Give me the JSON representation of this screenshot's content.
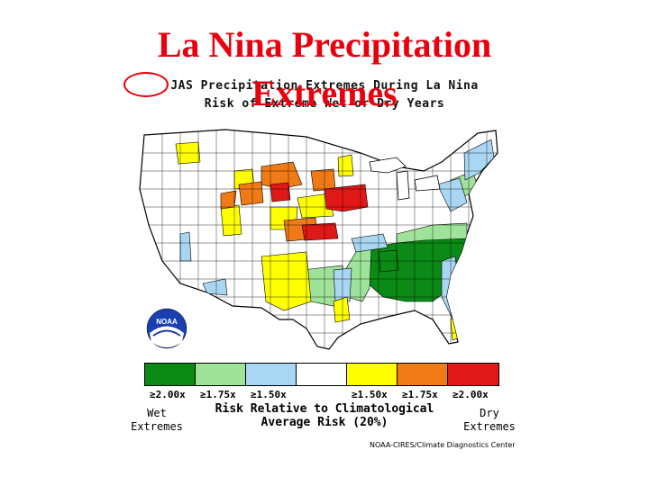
{
  "slide": {
    "title_line1": "La Nina Precipitation",
    "title_line2": "Extremes"
  },
  "figure": {
    "heading_line1": "JAS Precipitation Extremes During La Nina",
    "heading_line2": "Risk of Extreme Wet or Dry Years",
    "season": "JAS",
    "circled_text": "JAS"
  },
  "legend": {
    "colors": [
      "#0b8a16",
      "#9fe39a",
      "#a9d6f2",
      "#ffffff",
      "#ffff00",
      "#f07a16",
      "#e11818"
    ],
    "wet_ticks": [
      "≥2.00x",
      "≥1.75x",
      "≥1.50x"
    ],
    "dry_ticks": [
      "≥1.50x",
      "≥1.75x",
      "≥2.00x"
    ],
    "wet_label": [
      "Wet",
      "Extremes"
    ],
    "dry_label": [
      "Dry",
      "Extremes"
    ],
    "caption_line1": "Risk Relative to Climatological",
    "caption_line2": "Average Risk (20%)"
  },
  "logo": {
    "text": "NOAA"
  },
  "credit": "NOAA-CIRES/Climate Diagnostics Center",
  "map_regions": {
    "wet_strong": "#0b8a16",
    "wet_moderate": "#9fe39a",
    "wet_weak": "#a9d6f2",
    "dry_weak": "#ffff00",
    "dry_moderate": "#f07a16",
    "dry_strong": "#e11818"
  }
}
